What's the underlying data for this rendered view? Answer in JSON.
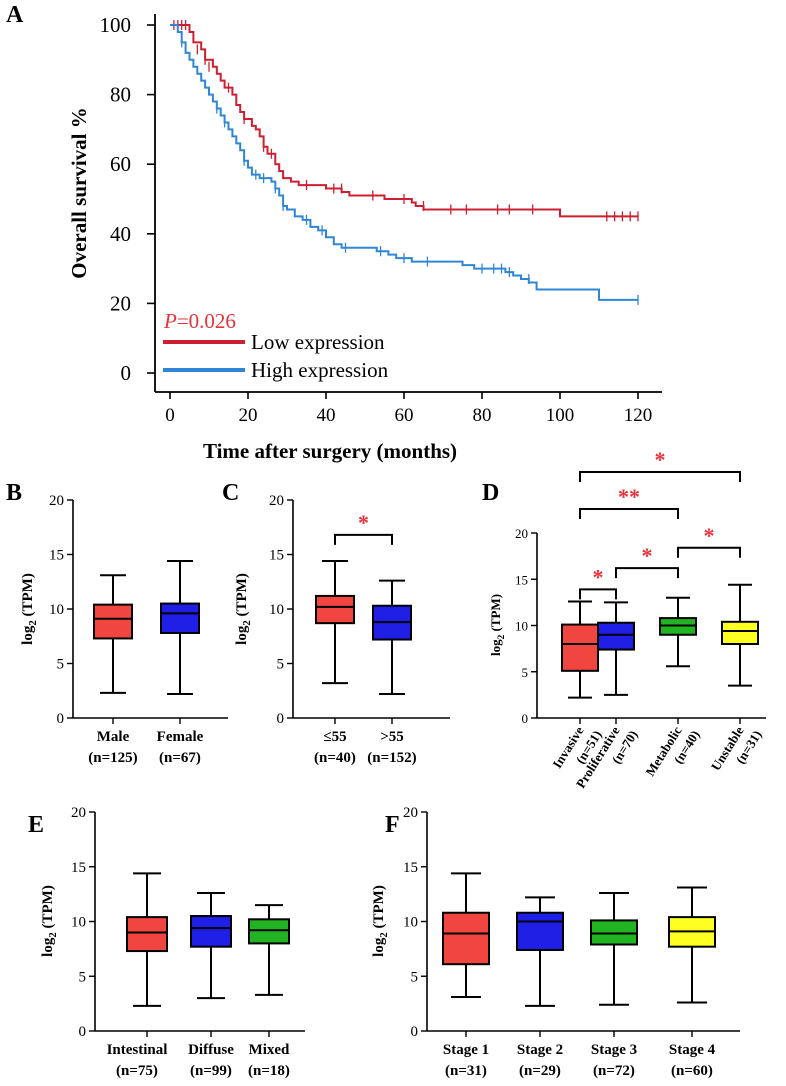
{
  "colors": {
    "low": "#cc1f2f",
    "high": "#2f86d6",
    "red": "#f0463f",
    "blue": "#1f1fe6",
    "green": "#22b322",
    "yellow": "#ffff22",
    "star": "#e8323a",
    "pvalue": "#e8323a",
    "axis": "#000000"
  },
  "chart_data": [
    {
      "panel": "A",
      "type": "line",
      "subtype": "kaplan-meier",
      "xlabel": "Time after surgery (months)",
      "ylabel": "Overall survival %",
      "xlim": [
        0,
        120
      ],
      "ylim": [
        0,
        100
      ],
      "xticks": [
        "0",
        "20",
        "40",
        "60",
        "80",
        "100",
        "120"
      ],
      "yticks": [
        "0",
        "20",
        "40",
        "60",
        "80",
        "100"
      ],
      "pvalue_label": "P",
      "pvalue_text": "=0.026",
      "series": [
        {
          "name": "Low expression",
          "color_key": "low",
          "points": [
            [
              0,
              100
            ],
            [
              4,
              100
            ],
            [
              5,
              98
            ],
            [
              6,
              95
            ],
            [
              8,
              93
            ],
            [
              9,
              90
            ],
            [
              11,
              88
            ],
            [
              12,
              86
            ],
            [
              13,
              84
            ],
            [
              14,
              82
            ],
            [
              16,
              80
            ],
            [
              17,
              77
            ],
            [
              18,
              75
            ],
            [
              19,
              73
            ],
            [
              21,
              71
            ],
            [
              22,
              70
            ],
            [
              23,
              68
            ],
            [
              24,
              65
            ],
            [
              25,
              63
            ],
            [
              27,
              60
            ],
            [
              28,
              58
            ],
            [
              29,
              56
            ],
            [
              31,
              55
            ],
            [
              33,
              54
            ],
            [
              36,
              54
            ],
            [
              40,
              53
            ],
            [
              42,
              53
            ],
            [
              44,
              52
            ],
            [
              46,
              51
            ],
            [
              50,
              51
            ],
            [
              55,
              50
            ],
            [
              58,
              50
            ],
            [
              62,
              49
            ],
            [
              63,
              48
            ],
            [
              65,
              47
            ],
            [
              70,
              47
            ],
            [
              80,
              47
            ],
            [
              90,
              47
            ],
            [
              98,
              47
            ],
            [
              100,
              45
            ],
            [
              110,
              45
            ],
            [
              120,
              45
            ]
          ],
          "censors": [
            [
              1,
              100
            ],
            [
              2,
              100
            ],
            [
              3,
              100
            ],
            [
              4,
              100
            ],
            [
              7,
              93
            ],
            [
              9,
              90
            ],
            [
              10,
              88
            ],
            [
              15,
              82
            ],
            [
              19,
              73
            ],
            [
              24,
              65
            ],
            [
              26,
              63
            ],
            [
              35,
              54
            ],
            [
              42,
              53
            ],
            [
              44,
              53
            ],
            [
              52,
              51
            ],
            [
              60,
              50
            ],
            [
              65,
              48
            ],
            [
              72,
              47
            ],
            [
              76,
              47
            ],
            [
              84,
              47
            ],
            [
              87,
              47
            ],
            [
              93,
              47
            ],
            [
              112,
              45
            ],
            [
              114,
              45
            ],
            [
              116,
              45
            ],
            [
              118,
              45
            ],
            [
              120,
              45
            ]
          ]
        },
        {
          "name": "High expression",
          "color_key": "high",
          "points": [
            [
              0,
              100
            ],
            [
              2,
              98
            ],
            [
              3,
              95
            ],
            [
              4,
              92
            ],
            [
              5,
              90
            ],
            [
              6,
              88
            ],
            [
              7,
              86
            ],
            [
              8,
              84
            ],
            [
              9,
              82
            ],
            [
              10,
              80
            ],
            [
              11,
              78
            ],
            [
              12,
              76
            ],
            [
              13,
              74
            ],
            [
              14,
              72
            ],
            [
              15,
              70
            ],
            [
              16,
              68
            ],
            [
              17,
              66
            ],
            [
              18,
              64
            ],
            [
              19,
              61
            ],
            [
              20,
              59
            ],
            [
              21,
              57
            ],
            [
              23,
              56
            ],
            [
              26,
              55
            ],
            [
              27,
              53
            ],
            [
              28,
              51
            ],
            [
              29,
              48
            ],
            [
              30,
              47
            ],
            [
              32,
              45
            ],
            [
              34,
              44
            ],
            [
              36,
              42
            ],
            [
              38,
              41
            ],
            [
              40,
              39
            ],
            [
              42,
              37
            ],
            [
              44,
              36
            ],
            [
              52,
              36
            ],
            [
              53,
              35
            ],
            [
              56,
              34
            ],
            [
              58,
              33
            ],
            [
              62,
              32
            ],
            [
              70,
              32
            ],
            [
              75,
              31
            ],
            [
              78,
              30
            ],
            [
              82,
              30
            ],
            [
              86,
              29
            ],
            [
              88,
              28
            ],
            [
              90,
              27
            ],
            [
              92,
              26
            ],
            [
              94,
              24
            ],
            [
              96,
              24
            ],
            [
              108,
              24
            ],
            [
              110,
              21
            ],
            [
              120,
              21
            ]
          ],
          "censors": [
            [
              3,
              95
            ],
            [
              12,
              76
            ],
            [
              14,
              72
            ],
            [
              19,
              61
            ],
            [
              22,
              57
            ],
            [
              24,
              56
            ],
            [
              27,
              53
            ],
            [
              29,
              48
            ],
            [
              35,
              44
            ],
            [
              39,
              41
            ],
            [
              45,
              36
            ],
            [
              54,
              35
            ],
            [
              60,
              33
            ],
            [
              66,
              32
            ],
            [
              80,
              30
            ],
            [
              83,
              30
            ],
            [
              85,
              30
            ],
            [
              87,
              29
            ],
            [
              92,
              27
            ],
            [
              120,
              21
            ]
          ]
        }
      ]
    },
    {
      "panel": "B",
      "type": "box",
      "ylabel_main": "log",
      "ylabel_sub": "2",
      "ylabel_tail": " (TPM)",
      "ylim": [
        0,
        20
      ],
      "yticks": [
        "0",
        "5",
        "10",
        "15",
        "20"
      ],
      "groups": [
        {
          "label": "Male",
          "n": "(n=125)",
          "color_key": "red",
          "min": 2.3,
          "q1": 7.3,
          "median": 9.1,
          "q3": 10.4,
          "max": 13.1
        },
        {
          "label": "Female",
          "n": "(n=67)",
          "color_key": "blue",
          "min": 2.2,
          "q1": 7.8,
          "median": 9.6,
          "q3": 10.5,
          "max": 14.4
        }
      ],
      "significance": []
    },
    {
      "panel": "C",
      "type": "box",
      "ylabel_main": "log",
      "ylabel_sub": "2",
      "ylabel_tail": " (TPM)",
      "ylim": [
        0,
        20
      ],
      "yticks": [
        "0",
        "5",
        "10",
        "15",
        "20"
      ],
      "groups": [
        {
          "label": "≤55",
          "n": "(n=40)",
          "color_key": "red",
          "min": 3.2,
          "q1": 8.7,
          "median": 10.2,
          "q3": 11.2,
          "max": 14.4
        },
        {
          "label": ">55",
          "n": "(n=152)",
          "color_key": "blue",
          "min": 2.2,
          "q1": 7.2,
          "median": 8.8,
          "q3": 10.3,
          "max": 12.6
        }
      ],
      "significance": [
        {
          "from": 0,
          "to": 1,
          "stars": "*",
          "level": 16.8
        }
      ]
    },
    {
      "panel": "D",
      "type": "box",
      "rotated_labels": true,
      "ylabel_main": "log",
      "ylabel_sub": "2",
      "ylabel_tail": " (TPM)",
      "ylim": [
        0,
        20
      ],
      "yticks": [
        "0",
        "5",
        "10",
        "15",
        "20"
      ],
      "groups": [
        {
          "label": "Invasive",
          "n": "(n=51)",
          "color_key": "red",
          "min": 2.2,
          "q1": 5.1,
          "median": 8.0,
          "q3": 10.1,
          "max": 12.6
        },
        {
          "label": "Proliferative",
          "n": "(n=70)",
          "color_key": "blue",
          "min": 2.5,
          "q1": 7.4,
          "median": 9.0,
          "q3": 10.3,
          "max": 12.5
        },
        {
          "label": "Metabolic",
          "n": "(n=40)",
          "color_key": "green",
          "min": 5.6,
          "q1": 9.0,
          "median": 10.0,
          "q3": 10.8,
          "max": 13.0
        },
        {
          "label": "Unstable",
          "n": "(n=31)",
          "color_key": "yellow",
          "min": 3.5,
          "q1": 8.0,
          "median": 9.4,
          "q3": 10.4,
          "max": 14.4
        }
      ],
      "significance": [
        {
          "from": 0,
          "to": 1,
          "stars": "*",
          "level": 13.9
        },
        {
          "from": 1,
          "to": 2,
          "stars": "*",
          "level": 16.2
        },
        {
          "from": 2,
          "to": 3,
          "stars": "*",
          "level": 18.4
        },
        {
          "from": 0,
          "to": 2,
          "stars": "**",
          "level": 22.6
        },
        {
          "from": 0,
          "to": 3,
          "stars": "*",
          "level": 26.6
        }
      ]
    },
    {
      "panel": "E",
      "type": "box",
      "ylabel_main": "log",
      "ylabel_sub": "2",
      "ylabel_tail": " (TPM)",
      "ylim": [
        0,
        20
      ],
      "yticks": [
        "0",
        "5",
        "10",
        "15",
        "20"
      ],
      "groups": [
        {
          "label": "Intestinal",
          "n": "(n=75)",
          "color_key": "red",
          "min": 2.3,
          "q1": 7.3,
          "median": 9.0,
          "q3": 10.4,
          "max": 14.4
        },
        {
          "label": "Diffuse",
          "n": "(n=99)",
          "color_key": "blue",
          "min": 3.0,
          "q1": 7.7,
          "median": 9.4,
          "q3": 10.5,
          "max": 12.6
        },
        {
          "label": "Mixed",
          "n": "(n=18)",
          "color_key": "green",
          "min": 3.3,
          "q1": 8.0,
          "median": 9.2,
          "q3": 10.2,
          "max": 11.5
        }
      ],
      "significance": []
    },
    {
      "panel": "F",
      "type": "box",
      "ylabel_main": "log",
      "ylabel_sub": "2",
      "ylabel_tail": " (TPM)",
      "ylim": [
        0,
        20
      ],
      "yticks": [
        "0",
        "5",
        "10",
        "15",
        "20"
      ],
      "groups": [
        {
          "label": "Stage 1",
          "n": "(n=31)",
          "color_key": "red",
          "min": 3.1,
          "q1": 6.1,
          "median": 8.9,
          "q3": 10.8,
          "max": 14.4
        },
        {
          "label": "Stage 2",
          "n": "(n=29)",
          "color_key": "blue",
          "min": 2.3,
          "q1": 7.4,
          "median": 10.0,
          "q3": 10.8,
          "max": 12.2
        },
        {
          "label": "Stage 3",
          "n": "(n=72)",
          "color_key": "green",
          "min": 2.4,
          "q1": 7.9,
          "median": 8.9,
          "q3": 10.1,
          "max": 12.6
        },
        {
          "label": "Stage 4",
          "n": "(n=60)",
          "color_key": "yellow",
          "min": 2.6,
          "q1": 7.7,
          "median": 9.1,
          "q3": 10.4,
          "max": 13.1
        }
      ],
      "significance": []
    }
  ]
}
